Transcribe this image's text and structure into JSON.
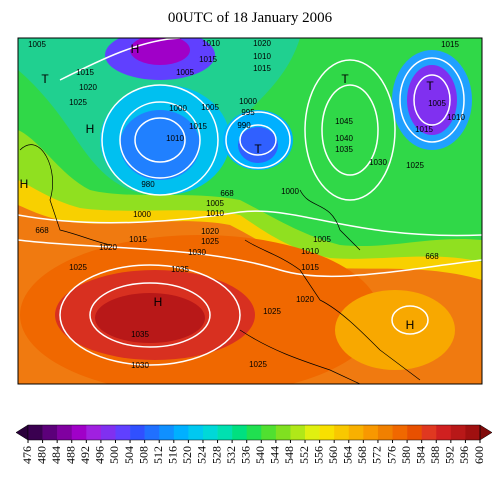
{
  "title": "00UTC of 18 January 2006",
  "map": {
    "contour_labels": [
      "1005",
      "1010",
      "1020",
      "1015",
      "1015",
      "1020",
      "1025",
      "1005",
      "1015",
      "1010",
      "1015",
      "1000",
      "1005",
      "1015",
      "1010",
      "1000",
      "995",
      "990",
      "1045",
      "1040",
      "1035",
      "1030",
      "1025",
      "1005",
      "1010",
      "1015",
      "980",
      "1000",
      "1005",
      "1010",
      "1015",
      "1020",
      "1025",
      "1030",
      "1020",
      "1025",
      "1035",
      "1000",
      "1005",
      "1010",
      "1015",
      "1020",
      "1025",
      "1025",
      "1035",
      "1030",
      "668",
      "668",
      "668"
    ],
    "pressure_centres": [
      "H",
      "H",
      "H",
      "H",
      "H",
      "T",
      "T",
      "T",
      "T"
    ]
  },
  "colorbar": {
    "ticks": [
      476,
      480,
      484,
      488,
      492,
      496,
      500,
      504,
      508,
      512,
      516,
      520,
      524,
      528,
      532,
      536,
      540,
      544,
      548,
      552,
      556,
      560,
      564,
      568,
      572,
      576,
      580,
      584,
      588,
      592,
      596,
      600
    ],
    "colors": [
      "#2a003a",
      "#3a0050",
      "#5c007a",
      "#8000a0",
      "#a000c8",
      "#a020e0",
      "#8030f0",
      "#6040ff",
      "#3050ff",
      "#2070ff",
      "#1090ff",
      "#00b0ff",
      "#00c8f0",
      "#00d8d8",
      "#00e0b0",
      "#00e080",
      "#20e050",
      "#50e030",
      "#80e020",
      "#b0e818",
      "#e0f010",
      "#f8e000",
      "#f8c800",
      "#f8b000",
      "#f89800",
      "#f08000",
      "#f06800",
      "#e85000",
      "#e03820",
      "#d02020",
      "#b81818",
      "#a01010",
      "#800a0a"
    ]
  }
}
